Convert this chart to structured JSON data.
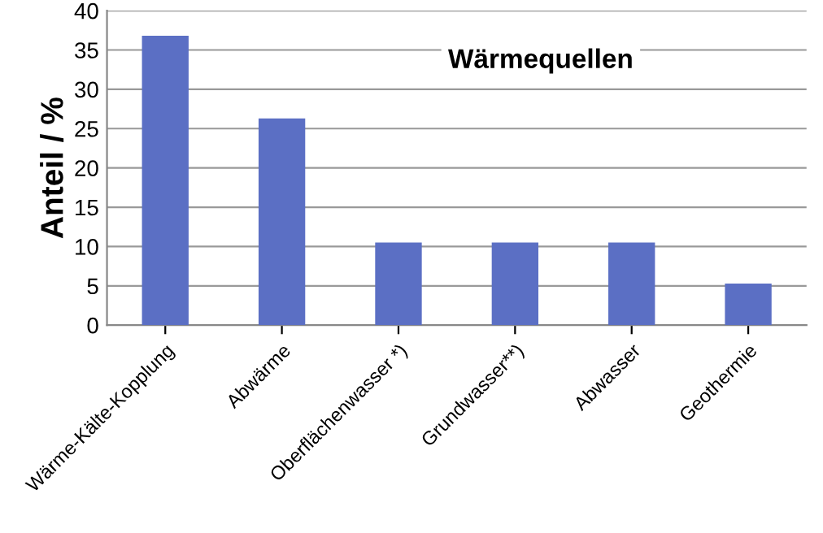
{
  "chart_data": {
    "type": "bar",
    "title": "Wärmequellen",
    "ylabel": "Anteil / %",
    "categories": [
      "Wärme-Kälte-Kopplung",
      "Abwärme",
      "Oberflächenwasser *)",
      "Grundwasser**)",
      "Abwasser",
      "Geothermie"
    ],
    "values": [
      36.8,
      26.3,
      10.5,
      10.5,
      10.5,
      5.3
    ],
    "color": "#5b6fc4",
    "ylim": [
      0,
      40
    ],
    "yticks": [
      0,
      5,
      10,
      15,
      20,
      25,
      30,
      35,
      40
    ],
    "grid": "y"
  }
}
